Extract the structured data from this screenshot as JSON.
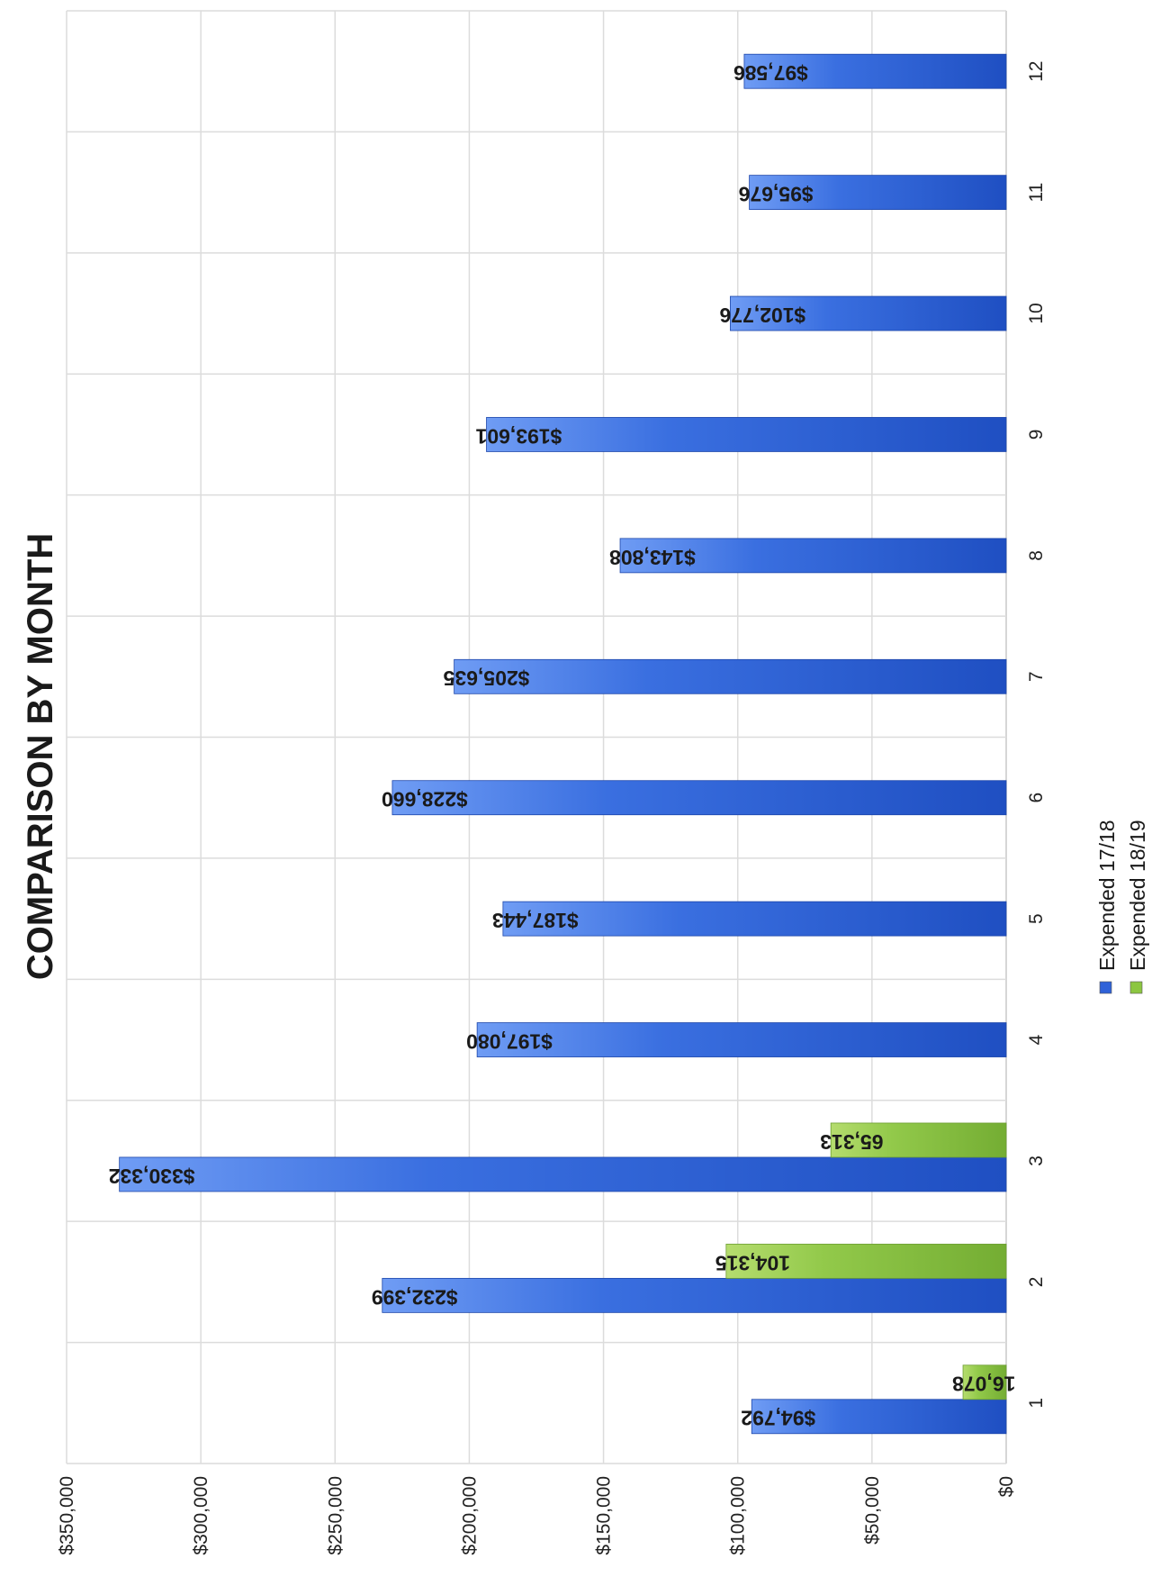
{
  "chart_data": {
    "type": "bar",
    "orientation": "horizontal",
    "rotation_deg": 90,
    "title": "COMPARISON BY MONTH",
    "categories": [
      "1",
      "2",
      "3",
      "4",
      "5",
      "6",
      "7",
      "8",
      "9",
      "10",
      "11",
      "12"
    ],
    "series": [
      {
        "name": "Expended 17/18",
        "color": "#2f62d8",
        "values": [
          94792,
          232399,
          330332,
          197080,
          187443,
          228660,
          205635,
          143808,
          193601,
          102776,
          95676,
          97586
        ],
        "labels": [
          "$94,792",
          "$232,399",
          "$330,332",
          "$197,080",
          "$187,443",
          "$228,660",
          "$205,635",
          "$143,808",
          "$193,601",
          "$102,776",
          "$95,676",
          "$97,586"
        ]
      },
      {
        "name": "Expended 18/19",
        "color": "#8cc641",
        "values": [
          16078,
          104315,
          65313,
          null,
          null,
          null,
          null,
          null,
          null,
          null,
          null,
          null
        ],
        "labels": [
          "16,078",
          "104,315",
          "65,313",
          "",
          "",
          "",
          "",
          "",
          "",
          "",
          "",
          ""
        ]
      }
    ],
    "value_axis": {
      "min": 0,
      "max": 350000,
      "step": 50000,
      "tick_labels": [
        "$0",
        "$50,000",
        "$100,000",
        "$150,000",
        "$200,000",
        "$250,000",
        "$300,000",
        "$350,000"
      ]
    },
    "grid": true,
    "legend_position": "right"
  }
}
